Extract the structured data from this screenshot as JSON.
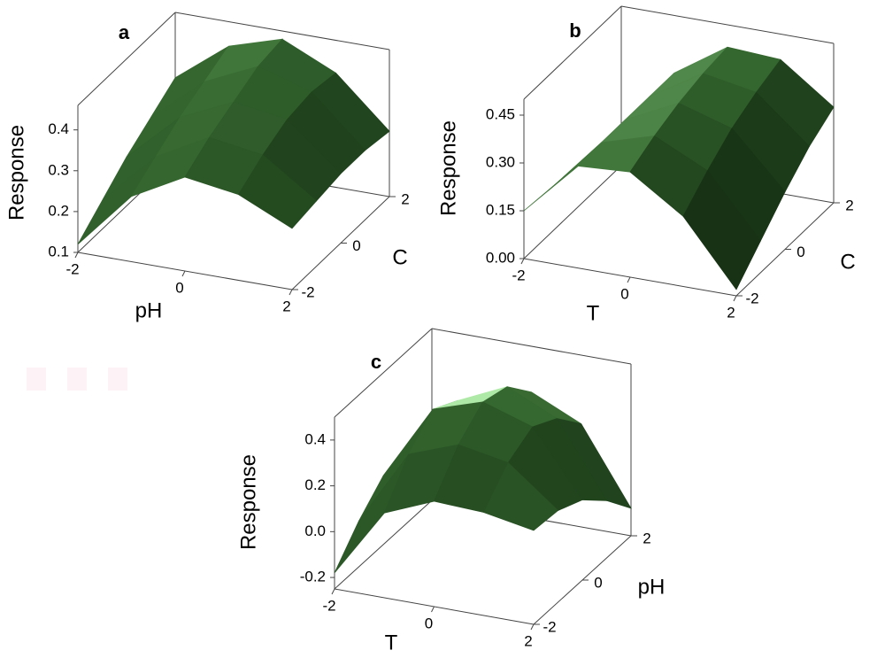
{
  "chart_data": [
    {
      "type": "surface",
      "title": "a",
      "xlabel": "pH",
      "ylabel": "C",
      "zlabel": "Response",
      "x": [
        -2,
        -1,
        0,
        1,
        2
      ],
      "y": [
        -2,
        -1,
        0,
        1,
        2
      ],
      "z": [
        [
          0.12,
          0.26,
          0.33,
          0.31,
          0.25
        ],
        [
          0.17,
          0.3,
          0.37,
          0.35,
          0.26
        ],
        [
          0.22,
          0.34,
          0.4,
          0.38,
          0.27
        ],
        [
          0.26,
          0.37,
          0.43,
          0.39,
          0.27
        ],
        [
          0.3,
          0.4,
          0.44,
          0.38,
          0.26
        ]
      ],
      "xlim": [
        -2,
        2
      ],
      "ylim": [
        -2,
        2
      ],
      "zlim": [
        0.1,
        0.46
      ],
      "xticks": [
        -2,
        0,
        2
      ],
      "yticks": [
        -2,
        0,
        2
      ],
      "zticks": [
        0.1,
        0.2,
        0.3,
        0.4
      ],
      "color": "#3c6e32"
    },
    {
      "type": "surface",
      "title": "b",
      "xlabel": "T",
      "ylabel": "C",
      "zlabel": "Response",
      "x": [
        -2,
        -1,
        0,
        1,
        2
      ],
      "y": [
        -2,
        -1,
        0,
        1,
        2
      ],
      "z": [
        [
          0.15,
          0.32,
          0.33,
          0.22,
          0.02
        ],
        [
          0.14,
          0.32,
          0.37,
          0.29,
          0.1
        ],
        [
          0.13,
          0.32,
          0.4,
          0.35,
          0.18
        ],
        [
          0.12,
          0.32,
          0.42,
          0.39,
          0.25
        ],
        [
          0.12,
          0.32,
          0.43,
          0.42,
          0.3
        ]
      ],
      "xlim": [
        -2,
        2
      ],
      "ylim": [
        -2,
        2
      ],
      "zlim": [
        0,
        0.5
      ],
      "xticks": [
        -2,
        0,
        2
      ],
      "yticks": [
        -2,
        0,
        2
      ],
      "zticks": [
        {
          "value": 0,
          "label": "0.00"
        },
        0.15,
        {
          "value": 0.3,
          "label": "0.30"
        },
        0.45
      ],
      "color": "#3c6e32"
    },
    {
      "type": "surface",
      "title": "c",
      "xlabel": "T",
      "ylabel": "pH",
      "zlabel": "Response",
      "x": [
        -2,
        -1,
        0,
        1,
        2
      ],
      "y": [
        -2,
        -1,
        0,
        1,
        2
      ],
      "z": [
        [
          -0.18,
          0.12,
          0.21,
          0.2,
          0.16
        ],
        [
          -0.05,
          0.28,
          0.36,
          0.32,
          0.15
        ],
        [
          0.05,
          0.38,
          0.45,
          0.38,
          0.1
        ],
        [
          -0.05,
          0.32,
          0.42,
          0.32,
          0.0
        ],
        [
          -0.2,
          0.2,
          0.3,
          0.2,
          -0.13
        ]
      ],
      "xlim": [
        -2,
        2
      ],
      "ylim": [
        -2,
        2
      ],
      "zlim": [
        -0.25,
        0.5
      ],
      "xticks": [
        -2,
        0,
        2
      ],
      "yticks": [
        -2,
        0,
        2
      ],
      "zticks": [
        -0.2,
        {
          "value": 0,
          "label": "0.0"
        },
        0.2,
        0.4
      ],
      "color": "#3c6e32"
    }
  ]
}
